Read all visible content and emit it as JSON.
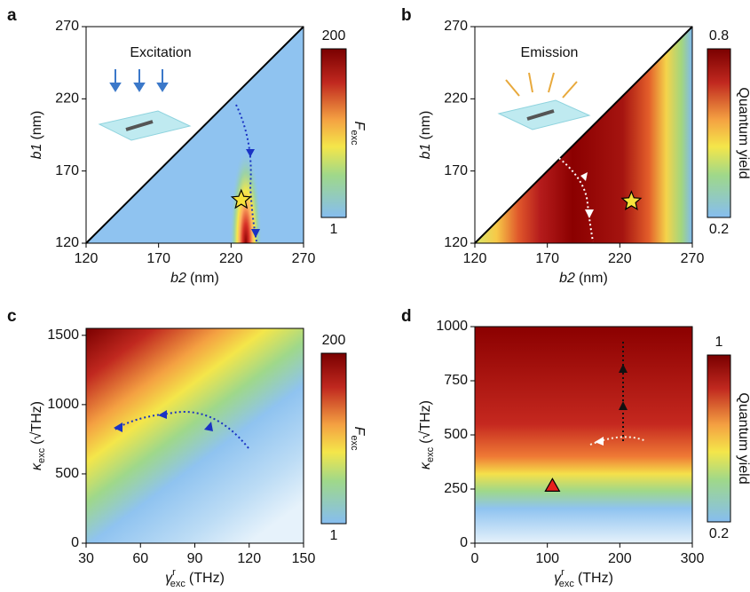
{
  "chart_data": [
    {
      "type": "heatmap",
      "panel": "a",
      "annotation": "Excitation",
      "xlabel": {
        "symbol": "b2",
        "unit": "(nm)"
      },
      "ylabel": {
        "symbol": "b1",
        "unit": "(nm)"
      },
      "xlim": [
        120,
        270
      ],
      "ylim": [
        120,
        270
      ],
      "xticks": [
        120,
        170,
        220,
        270
      ],
      "yticks": [
        120,
        170,
        220,
        270
      ],
      "colorbar": {
        "label": {
          "symbol": "F",
          "sub": "exc"
        },
        "lim": [
          1,
          200
        ],
        "ticks": [
          1,
          200
        ]
      },
      "markers": [
        {
          "shape": "star",
          "color": "#f7e23b",
          "x": 227,
          "y": 150
        }
      ]
    },
    {
      "type": "heatmap",
      "panel": "b",
      "annotation": "Emission",
      "xlabel": {
        "symbol": "b2",
        "unit": "(nm)"
      },
      "ylabel": {
        "symbol": "b1",
        "unit": "(nm)"
      },
      "xlim": [
        120,
        270
      ],
      "ylim": [
        120,
        270
      ],
      "xticks": [
        120,
        170,
        220,
        270
      ],
      "yticks": [
        120,
        170,
        220,
        270
      ],
      "colorbar": {
        "label": "Quantum yield",
        "lim": [
          0.2,
          0.8
        ],
        "ticks": [
          0.2,
          0.8
        ]
      },
      "markers": [
        {
          "shape": "star",
          "color": "#f7e23b",
          "x": 228,
          "y": 149
        }
      ]
    },
    {
      "type": "heatmap",
      "panel": "c",
      "xlabel": {
        "symbol": "γ",
        "sup": "r",
        "sub": "exc",
        "unit": "(THz)"
      },
      "ylabel": {
        "symbol": "κ",
        "sub": "exc",
        "unit": "(√THz)"
      },
      "xlim": [
        30,
        150
      ],
      "ylim": [
        0,
        1550
      ],
      "xticks": [
        30,
        60,
        90,
        120,
        150
      ],
      "yticks": [
        0,
        500,
        1000,
        1500
      ],
      "colorbar": {
        "label": {
          "symbol": "F",
          "sub": "exc"
        },
        "lim": [
          1,
          200
        ],
        "ticks": [
          1,
          200
        ]
      }
    },
    {
      "type": "heatmap",
      "panel": "d",
      "xlabel": {
        "symbol": "γ",
        "sup": "r",
        "sub": "exc",
        "unit": "(THz)"
      },
      "ylabel": {
        "symbol": "κ",
        "sub": "exc",
        "unit": "(√THz)"
      },
      "xlim": [
        0,
        300
      ],
      "ylim": [
        0,
        1000
      ],
      "xticks": [
        0,
        100,
        200,
        300
      ],
      "yticks": [
        0,
        250,
        500,
        750,
        1000
      ],
      "colorbar": {
        "label": "Quantum yield",
        "lim": [
          0.2,
          1
        ],
        "ticks": [
          0.2,
          1
        ]
      },
      "markers": [
        {
          "shape": "triangle",
          "color": "#e8201c",
          "x": 107,
          "y": 265
        }
      ]
    }
  ]
}
